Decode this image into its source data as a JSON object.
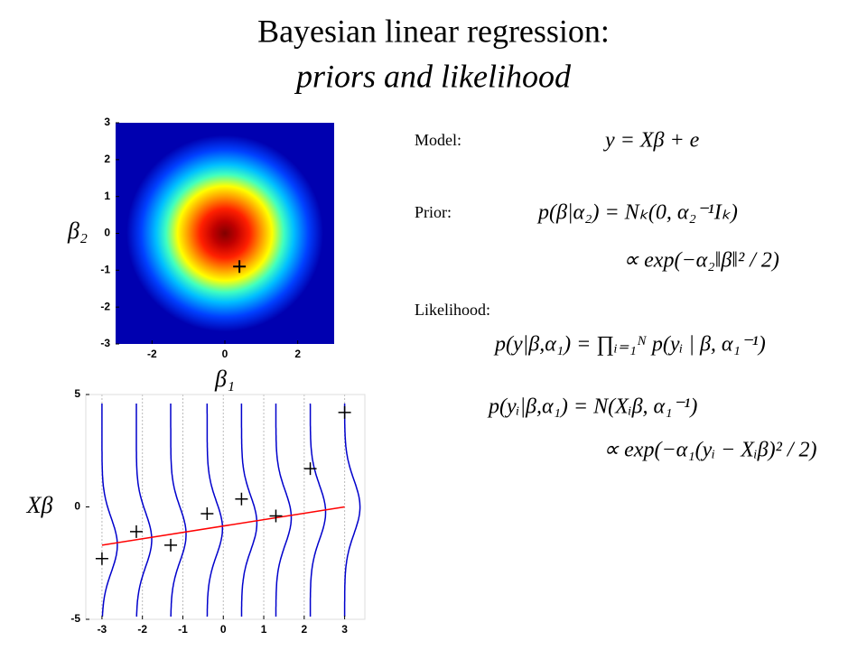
{
  "title": "Bayesian linear regression:",
  "subtitle": "priors and likelihood",
  "chart_data": [
    {
      "type": "heatmap",
      "xlabel": "β₁",
      "ylabel": "β₂",
      "xlim": [
        -3,
        3
      ],
      "ylim": [
        -3,
        3
      ],
      "xticks": [
        -2,
        0,
        2
      ],
      "yticks": [
        -3,
        -2,
        -1,
        0,
        1,
        2,
        3
      ],
      "center": [
        0,
        0
      ],
      "marker": {
        "x": 0.4,
        "y": -0.9
      }
    },
    {
      "type": "scatter",
      "ylabel": "Xβ",
      "xlim": [
        -3.4,
        3.5
      ],
      "ylim": [
        -5,
        5
      ],
      "xticks": [
        -3,
        -2,
        -1,
        0,
        1,
        2,
        3
      ],
      "yticks": [
        -5,
        0,
        5
      ],
      "grid": true,
      "x": [
        -3,
        -2.15,
        -1.3,
        -0.4,
        0.45,
        1.3,
        2.15,
        3
      ],
      "values": [
        -2.3,
        -1.1,
        -1.7,
        -0.3,
        0.35,
        -0.4,
        1.7,
        4.2
      ],
      "color": "#000000",
      "fit_line": {
        "x": [
          -3,
          3
        ],
        "values": [
          -1.7,
          0
        ],
        "color": "#ff0000"
      },
      "curve_color": "#0000cc"
    }
  ],
  "equations": [
    {
      "label": "Model:",
      "lines": [
        "y = Xβ + e"
      ]
    },
    {
      "label": "Prior:",
      "lines": [
        "p(β|α₂) = Nₖ(0, α₂⁻¹Iₖ)",
        "∝ exp(−α₂‖β‖² / 2)"
      ]
    },
    {
      "label": "Likelihood:",
      "lines": [
        "p(y|β,α₁) = ∏ᵢ₌₁ᴺ p(yᵢ | β, α₁⁻¹)",
        "p(yᵢ|β,α₁) = N(Xᵢβ, α₁⁻¹)",
        "∝ exp(−α₁(yᵢ − Xᵢβ)² / 2)"
      ]
    }
  ]
}
